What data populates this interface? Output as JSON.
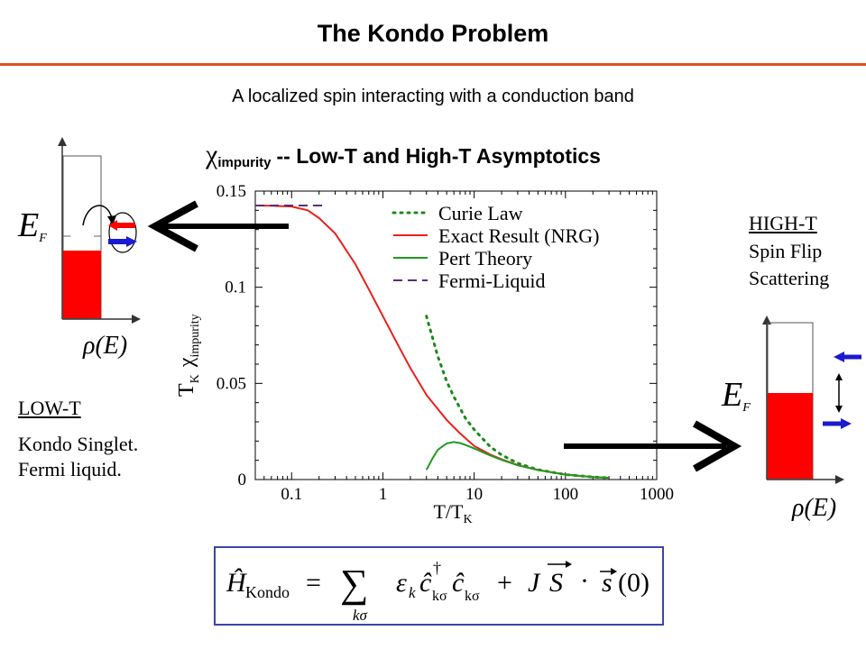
{
  "header": {
    "title": "The Kondo Problem",
    "subtitle": "A localized spin interacting with a conduction band"
  },
  "colors": {
    "title_rule": "#e0501e",
    "curie": "#1a8a1a",
    "exact": "#e8201c",
    "pert": "#1f9a1f",
    "fermi": "#5a2d7a",
    "band_fill": "#ff0000",
    "spin_blue": "#1a1ad0"
  },
  "chart_title": {
    "symbol": "χ",
    "subscript": "impurity",
    "text": "-- Low-T and High-T Asymptotics"
  },
  "left_panel": {
    "fermi_label": "E",
    "fermi_sub": "F",
    "dos_label": "ρ(E)",
    "heading": "LOW-T",
    "line1": "Kondo Singlet.",
    "line2": "Fermi liquid."
  },
  "right_panel": {
    "heading": "HIGH-T",
    "line1": "Spin Flip",
    "line2": "Scattering",
    "fermi_label": "E",
    "fermi_sub": "F",
    "dos_label": "ρ(E)"
  },
  "formula": {
    "lhs": "Ĥ",
    "lhs_sub": "Kondo",
    "eq": "=",
    "sum": "∑",
    "sum_sub": "kσ",
    "term1": "ε",
    "term1_sub": "k",
    "c": "ĉ",
    "dag": "†",
    "csub1": "kσ",
    "csub2": "kσ",
    "plus": "+",
    "J": "J",
    "S": "S",
    "dot": "·",
    "s": "s",
    "arg": "(0)"
  },
  "chart_data": {
    "type": "line",
    "x_scale": "log",
    "xlim": [
      0.04,
      1000
    ],
    "ylim": [
      0,
      0.15
    ],
    "xlabel": "T/T",
    "xlabel_sub": "K",
    "ylabel": "T",
    "ylabel_sub": "K",
    "ylabel_chi": "χ",
    "ylabel_chi_sub": "impurity",
    "x_ticks": [
      0.1,
      1,
      10,
      100,
      1000
    ],
    "x_tick_labels": [
      "0.1",
      "1",
      "10",
      "100",
      "1000"
    ],
    "y_ticks": [
      0,
      0.05,
      0.1,
      0.15
    ],
    "y_tick_labels": [
      "0",
      "0.05",
      "0.1",
      "0.15"
    ],
    "legend_position": "top-right",
    "series": [
      {
        "name": "Curie Law",
        "style": "dotted",
        "x": [
          3,
          4,
          5,
          6,
          8,
          10,
          15,
          20,
          30,
          50,
          100,
          200,
          300
        ],
        "y": [
          0.085,
          0.064,
          0.051,
          0.043,
          0.032,
          0.026,
          0.017,
          0.0128,
          0.0085,
          0.0051,
          0.0026,
          0.0013,
          0.0009
        ]
      },
      {
        "name": "Exact Result (NRG)",
        "style": "solid",
        "x": [
          0.04,
          0.06,
          0.1,
          0.15,
          0.2,
          0.3,
          0.5,
          0.7,
          1,
          1.5,
          2,
          3,
          5,
          7,
          10,
          15,
          20,
          30,
          50,
          100,
          200,
          300
        ],
        "y": [
          0.1425,
          0.1424,
          0.142,
          0.14,
          0.136,
          0.128,
          0.112,
          0.099,
          0.085,
          0.069,
          0.058,
          0.044,
          0.031,
          0.024,
          0.0175,
          0.013,
          0.0105,
          0.0075,
          0.005,
          0.0026,
          0.0013,
          0.0009
        ]
      },
      {
        "name": "Pert Theory",
        "style": "solid",
        "x": [
          3,
          3.5,
          4,
          5,
          6,
          7,
          8,
          10,
          15,
          20,
          30,
          50,
          100,
          200,
          300
        ],
        "y": [
          0.005,
          0.011,
          0.0155,
          0.0188,
          0.0195,
          0.019,
          0.018,
          0.0162,
          0.0125,
          0.0102,
          0.0074,
          0.0049,
          0.0026,
          0.0013,
          0.0009
        ]
      },
      {
        "name": "Fermi-Liquid",
        "style": "dashed",
        "x": [
          0.04,
          0.23
        ],
        "y": [
          0.1425,
          0.1425
        ]
      }
    ]
  }
}
